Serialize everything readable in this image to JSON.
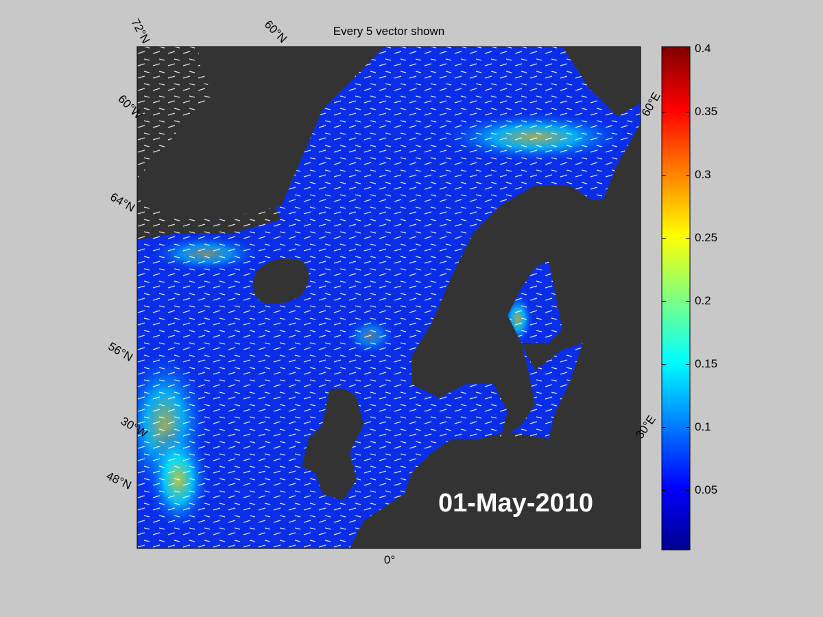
{
  "map": {
    "title": "Every 5 vector shown",
    "date_label": "01-May-2010",
    "graticule_labels": [
      "72°N",
      "60°N",
      "60°W",
      "64°N",
      "56°N",
      "30°W",
      "48°N",
      "0°",
      "60°E",
      "30°E"
    ],
    "colorbar": {
      "clim": [
        0.003,
        0.402
      ],
      "ticks": [
        0.05,
        0.1,
        0.15,
        0.2,
        0.25,
        0.3,
        0.35,
        0.4
      ],
      "colormap": [
        "#00008f",
        "#0000ff",
        "#0080ff",
        "#00ffff",
        "#80ff80",
        "#ffff00",
        "#ff8000",
        "#ff0000",
        "#800000"
      ]
    }
  }
}
